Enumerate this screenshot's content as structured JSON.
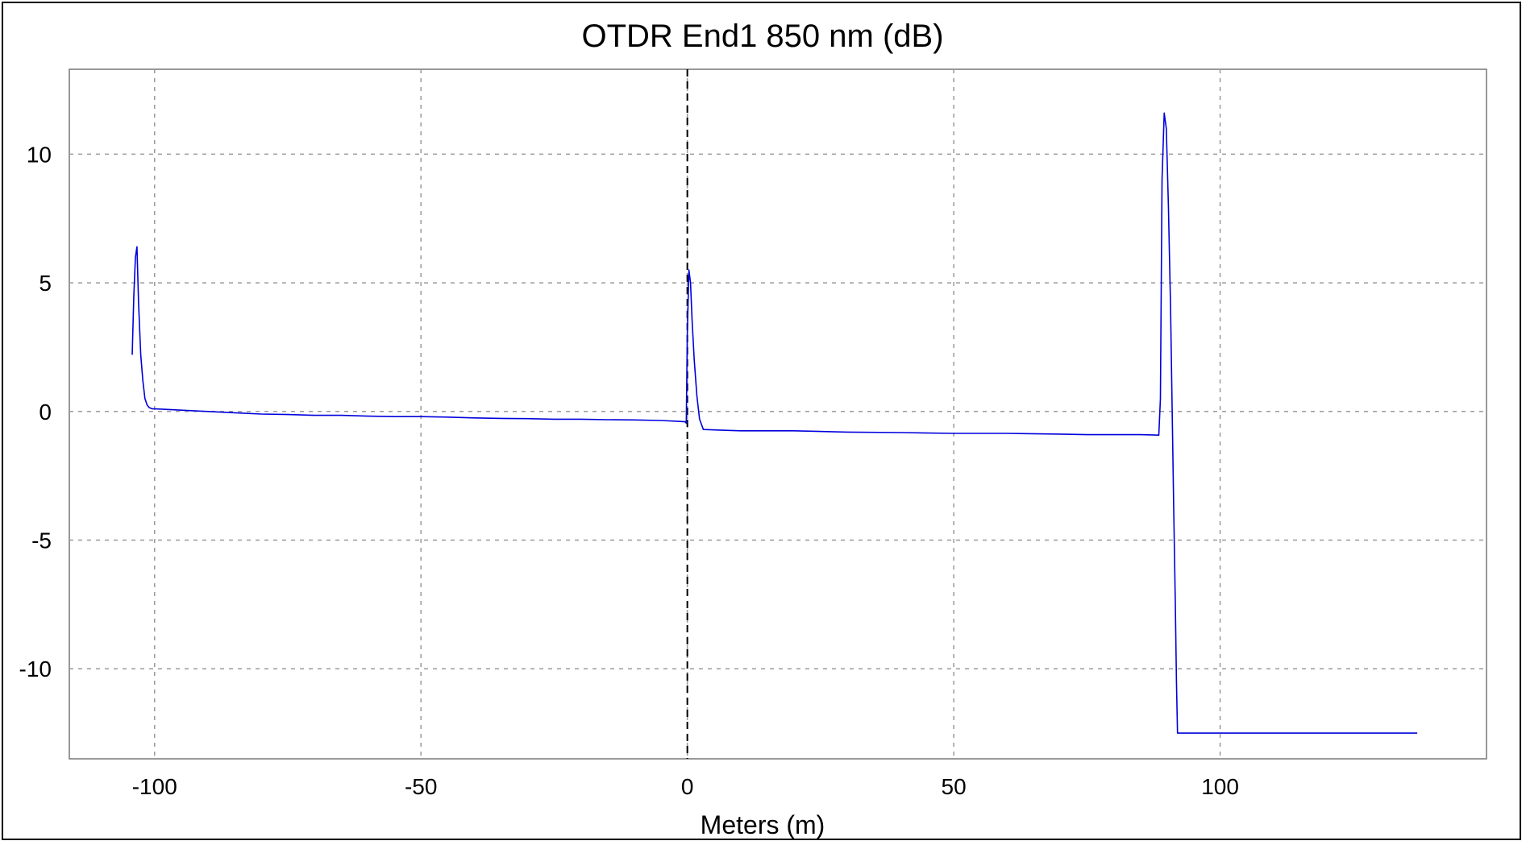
{
  "chart_data": {
    "type": "line",
    "title": "OTDR End1 850 nm (dB)",
    "xlabel": "Meters (m)",
    "ylabel": "",
    "xlim": [
      -116,
      150
    ],
    "ylim": [
      -13.5,
      13.3
    ],
    "x_ticks": [
      -100,
      -50,
      0,
      50,
      100
    ],
    "x_tick_labels": [
      "-100",
      "-50",
      "0",
      "50",
      "100"
    ],
    "y_ticks": [
      10,
      5,
      0,
      -5,
      -10
    ],
    "y_tick_labels": [
      "10",
      "5",
      "0",
      "-5",
      "-10"
    ],
    "grid": true,
    "marker_x": 0,
    "series": [
      {
        "color": "#0000dd",
        "x": [
          -104.2,
          -103.9,
          -103.6,
          -103.3,
          -103.0,
          -102.6,
          -102.2,
          -101.8,
          -101.4,
          -101.0,
          -100.4,
          -99.8,
          -95,
          -90,
          -85,
          -80,
          -75,
          -70,
          -65,
          -60,
          -55,
          -50,
          -45,
          -40,
          -35,
          -30,
          -25,
          -20,
          -15,
          -10,
          -5,
          -2,
          -0.4,
          -0.2,
          0.0,
          0.3,
          0.6,
          0.9,
          1.3,
          1.8,
          2.3,
          3,
          10,
          20,
          30,
          40,
          50,
          60,
          70,
          75,
          80,
          85,
          88.5,
          88.8,
          89.1,
          89.5,
          89.9,
          90.3,
          90.7,
          91.0,
          91.3,
          91.6,
          91.8,
          92.0,
          92.3,
          100,
          110,
          120,
          130,
          137
        ],
        "y": [
          2.2,
          4.5,
          6.0,
          6.4,
          4.2,
          2.2,
          1.2,
          0.5,
          0.25,
          0.15,
          0.1,
          0.1,
          0.05,
          0.0,
          -0.05,
          -0.1,
          -0.12,
          -0.15,
          -0.15,
          -0.18,
          -0.2,
          -0.2,
          -0.22,
          -0.25,
          -0.27,
          -0.28,
          -0.3,
          -0.3,
          -0.32,
          -0.33,
          -0.35,
          -0.38,
          -0.4,
          -0.45,
          3.0,
          5.5,
          5.0,
          3.5,
          2.0,
          0.6,
          -0.3,
          -0.7,
          -0.75,
          -0.75,
          -0.8,
          -0.82,
          -0.85,
          -0.85,
          -0.88,
          -0.9,
          -0.9,
          -0.9,
          -0.92,
          0.5,
          9.0,
          11.6,
          11.0,
          8.0,
          4.0,
          0.0,
          -4.0,
          -7.5,
          -10.5,
          -12.5,
          -12.5,
          -12.5,
          -12.5,
          -12.5,
          -12.5,
          -12.5
        ]
      }
    ]
  }
}
